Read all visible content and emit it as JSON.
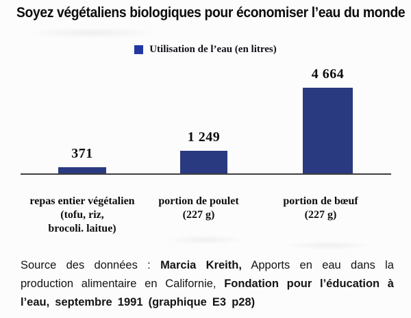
{
  "chart_data": {
    "type": "bar",
    "title": "Soyez végétaliens biologiques pour économiser l’eau du monde",
    "legend": "Utilisation de l’eau (en litres)",
    "legend_position": "top-center",
    "categories": [
      "repas entier végétalien (tofu, riz, brocoli. laitue)",
      "portion de poulet (227 g)",
      "portion de bœuf (227 g)"
    ],
    "categories_lines": [
      [
        "repas entier végétalien",
        "(tofu, riz,",
        "brocoli. laitue)"
      ],
      [
        "portion de poulet",
        "(227 g)",
        ""
      ],
      [
        "portion de bœuf",
        "(227 g)",
        ""
      ]
    ],
    "values": [
      371,
      1249,
      4664
    ],
    "value_labels": [
      "371",
      "1 249",
      "4 664"
    ],
    "xlabel": "",
    "ylabel": "Utilisation de l’eau (en litres)",
    "ylim": [
      0,
      4664
    ],
    "grid": false,
    "bar_color": "#2a3a80",
    "legend_color": "#2337a3",
    "axis_line_color": "#3e3e3e"
  },
  "source": {
    "prefix": "Source des données : ",
    "bold1": "Marcia Kreith,",
    "middle": " Apports en eau dans la production alimentaire en Californie, ",
    "bold2": "Fondation pour l’éducation à l’eau, septembre 1991 (graphique E3 p28)"
  }
}
